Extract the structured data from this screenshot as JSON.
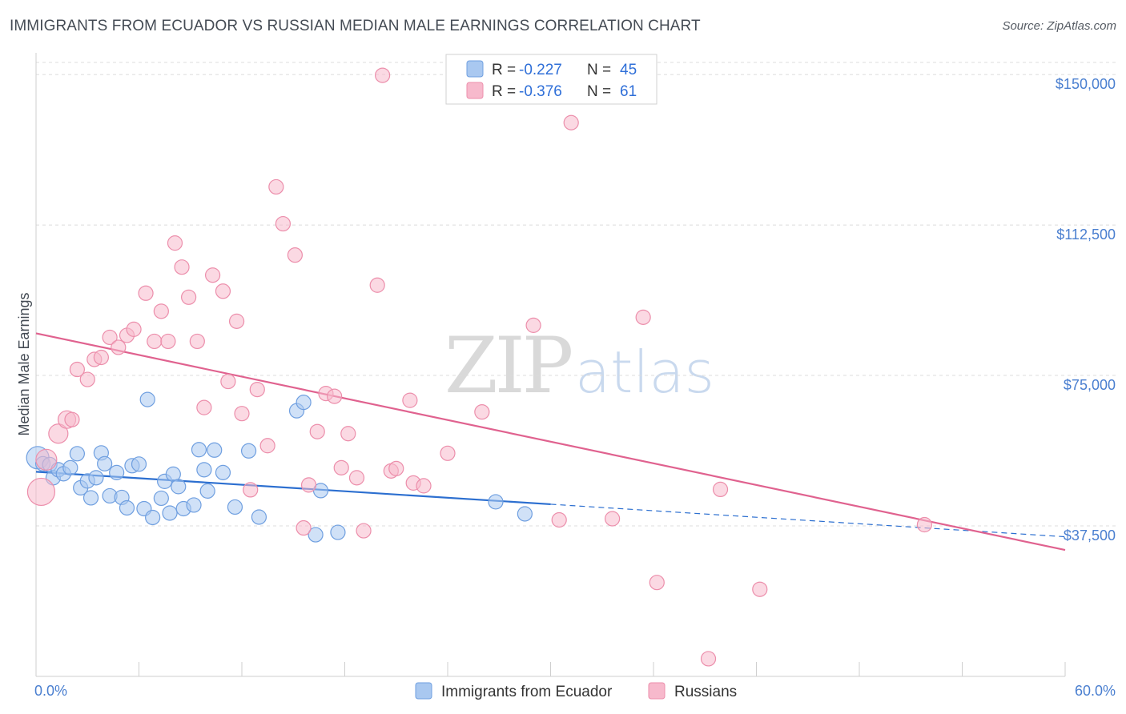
{
  "header": {
    "title": "IMMIGRANTS FROM ECUADOR VS RUSSIAN MEDIAN MALE EARNINGS CORRELATION CHART",
    "source": "Source: ZipAtlas.com"
  },
  "watermark": {
    "part1": "ZIP",
    "part2": "atlas"
  },
  "colors": {
    "ecuador_fill": "#a9c8f0",
    "ecuador_stroke": "#6f9fe0",
    "ecuador_line": "#2c6fd0",
    "russian_fill": "#f7b9cc",
    "russian_stroke": "#ec8eab",
    "russian_line": "#e0628f",
    "grid": "#dcdcdc",
    "axis_label": "#4a7fd0"
  },
  "legend": {
    "r_label": "R =",
    "n_label": "N =",
    "series": [
      {
        "name": "Immigrants from Ecuador",
        "r": "-0.227",
        "n": "45"
      },
      {
        "name": "Russians",
        "r": "-0.376",
        "n": "61"
      }
    ]
  },
  "chart_data": {
    "type": "scatter",
    "title": "IMMIGRANTS FROM ECUADOR VS RUSSIAN MEDIAN MALE EARNINGS CORRELATION CHART",
    "xlabel": "",
    "ylabel": "Median Male Earnings",
    "x_unit": "%",
    "xlim": [
      0,
      60
    ],
    "ylim": [
      0,
      157000
    ],
    "x_tick_labels": [
      "0.0%",
      "60.0%"
    ],
    "y_ticks": [
      37500,
      75000,
      112500,
      150000
    ],
    "y_tick_labels": [
      "$37,500",
      "$75,000",
      "$112,500",
      "$150,000"
    ],
    "grid": "horizontal dashed",
    "legend_position": "top-center",
    "series": [
      {
        "name": "Immigrants from Ecuador",
        "r": -0.227,
        "n": 45,
        "trend": {
          "x_start": 0,
          "y_start": 51000,
          "x_solid_end": 30,
          "x_end": 60,
          "y_end": 34800
        },
        "points": [
          [
            0.1,
            54500,
            14
          ],
          [
            0.4,
            53000,
            9
          ],
          [
            0.8,
            52800,
            9
          ],
          [
            1.0,
            49500,
            9
          ],
          [
            1.3,
            51500,
            9
          ],
          [
            1.6,
            50500,
            9
          ],
          [
            2.0,
            52000,
            9
          ],
          [
            2.4,
            55500,
            9
          ],
          [
            2.6,
            47000,
            9
          ],
          [
            3.0,
            48700,
            9
          ],
          [
            3.2,
            44500,
            9
          ],
          [
            3.5,
            49500,
            9
          ],
          [
            3.8,
            55700,
            9
          ],
          [
            4.0,
            53000,
            9
          ],
          [
            4.3,
            45000,
            9
          ],
          [
            4.7,
            50800,
            9
          ],
          [
            5.0,
            44600,
            9
          ],
          [
            5.3,
            42000,
            9
          ],
          [
            5.6,
            52500,
            9
          ],
          [
            6.0,
            52900,
            9
          ],
          [
            6.3,
            41800,
            9
          ],
          [
            6.5,
            69000,
            9
          ],
          [
            6.8,
            39600,
            9
          ],
          [
            7.3,
            44400,
            9
          ],
          [
            7.5,
            48600,
            9
          ],
          [
            7.8,
            40700,
            9
          ],
          [
            8.0,
            50400,
            9
          ],
          [
            8.3,
            47300,
            9
          ],
          [
            8.6,
            41800,
            9
          ],
          [
            9.2,
            42700,
            9
          ],
          [
            9.5,
            56500,
            9
          ],
          [
            9.8,
            51500,
            9
          ],
          [
            10.0,
            46200,
            9
          ],
          [
            10.4,
            56400,
            9
          ],
          [
            10.9,
            50800,
            9
          ],
          [
            11.6,
            42200,
            9
          ],
          [
            12.4,
            56200,
            9
          ],
          [
            13.0,
            39700,
            9
          ],
          [
            15.2,
            66200,
            9
          ],
          [
            15.6,
            68300,
            9
          ],
          [
            16.3,
            35300,
            9
          ],
          [
            16.6,
            46300,
            9
          ],
          [
            17.6,
            35900,
            9
          ],
          [
            26.8,
            43500,
            9
          ],
          [
            28.5,
            40500,
            9
          ]
        ]
      },
      {
        "name": "Russians",
        "r": -0.376,
        "n": 61,
        "trend": {
          "x_start": 0,
          "y_start": 85500,
          "x_end": 60,
          "y_end": 31500
        },
        "points": [
          [
            0.3,
            46000,
            17
          ],
          [
            0.6,
            54000,
            13
          ],
          [
            1.3,
            60500,
            12
          ],
          [
            1.8,
            64000,
            11
          ],
          [
            2.1,
            64000,
            9
          ],
          [
            2.4,
            76500,
            9
          ],
          [
            3.0,
            74000,
            9
          ],
          [
            3.4,
            79000,
            9
          ],
          [
            3.8,
            79500,
            9
          ],
          [
            4.3,
            84500,
            9
          ],
          [
            4.8,
            82000,
            9
          ],
          [
            5.3,
            85000,
            9
          ],
          [
            5.7,
            86500,
            9
          ],
          [
            6.4,
            95500,
            9
          ],
          [
            6.9,
            83500,
            9
          ],
          [
            7.3,
            91000,
            9
          ],
          [
            7.7,
            83500,
            9
          ],
          [
            8.1,
            108000,
            9
          ],
          [
            8.5,
            102000,
            9
          ],
          [
            8.9,
            94500,
            9
          ],
          [
            9.4,
            83500,
            9
          ],
          [
            9.8,
            67000,
            9
          ],
          [
            10.3,
            100000,
            9
          ],
          [
            10.9,
            96000,
            9
          ],
          [
            11.2,
            73500,
            9
          ],
          [
            11.7,
            88500,
            9
          ],
          [
            12.0,
            65500,
            9
          ],
          [
            12.5,
            46500,
            9
          ],
          [
            12.9,
            71500,
            9
          ],
          [
            13.5,
            57500,
            9
          ],
          [
            14.0,
            122000,
            9
          ],
          [
            14.4,
            112800,
            9
          ],
          [
            15.1,
            105000,
            9
          ],
          [
            15.6,
            37000,
            9
          ],
          [
            15.9,
            47700,
            9
          ],
          [
            16.4,
            61000,
            9
          ],
          [
            16.9,
            70500,
            9
          ],
          [
            17.4,
            69800,
            9
          ],
          [
            17.8,
            52000,
            9
          ],
          [
            18.2,
            60500,
            9
          ],
          [
            18.7,
            49500,
            9
          ],
          [
            19.1,
            36300,
            9
          ],
          [
            19.9,
            97500,
            9
          ],
          [
            20.2,
            149800,
            9
          ],
          [
            20.7,
            51200,
            9
          ],
          [
            21.0,
            51800,
            9
          ],
          [
            21.8,
            68800,
            9
          ],
          [
            22.0,
            48200,
            9
          ],
          [
            22.6,
            47500,
            9
          ],
          [
            24.0,
            55600,
            9
          ],
          [
            26.0,
            65900,
            9
          ],
          [
            29.0,
            87500,
            9
          ],
          [
            30.5,
            39000,
            9
          ],
          [
            31.2,
            138000,
            9
          ],
          [
            33.6,
            39300,
            9
          ],
          [
            35.4,
            89500,
            9
          ],
          [
            36.2,
            23400,
            9
          ],
          [
            39.2,
            4400,
            9
          ],
          [
            39.9,
            46600,
            9
          ],
          [
            42.2,
            21700,
            9
          ],
          [
            51.8,
            37800,
            9
          ]
        ]
      }
    ]
  }
}
